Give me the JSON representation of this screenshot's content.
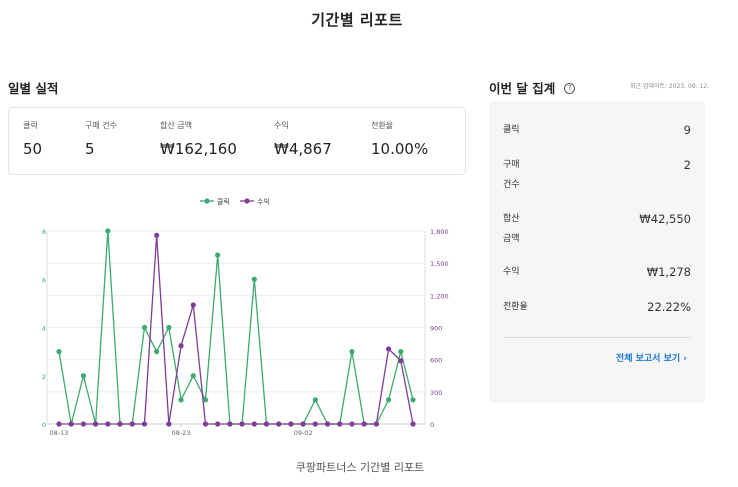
{
  "page_title": "기간별 리포트",
  "daily": {
    "title": "일별 실적",
    "stats": [
      {
        "label": "클릭",
        "value": "50"
      },
      {
        "label": "구매 건수",
        "value": "5"
      },
      {
        "label": "합산 금액",
        "value": "₩162,160"
      },
      {
        "label": "수익",
        "value": "₩4,867"
      },
      {
        "label": "전환율",
        "value": "10.00%"
      }
    ]
  },
  "colors": {
    "clicks": "#3daa6e",
    "revenue": "#7e3d96",
    "link": "#1877d6"
  },
  "chart_data": {
    "type": "line",
    "x_tick_labels": [
      "08-13",
      "08-23",
      "09-02"
    ],
    "series": [
      {
        "name": "클릭",
        "axis": "left",
        "values": [
          3,
          0,
          2,
          0,
          8,
          0,
          0,
          4,
          3,
          4,
          1,
          2,
          1,
          7,
          0,
          0,
          6,
          0,
          0,
          0,
          0,
          1,
          0,
          0,
          3,
          0,
          0,
          1,
          3,
          1
        ]
      },
      {
        "name": "수익",
        "axis": "right",
        "values": [
          0,
          0,
          0,
          0,
          0,
          0,
          0,
          0,
          1760,
          0,
          730,
          1110,
          0,
          0,
          0,
          0,
          0,
          0,
          0,
          0,
          0,
          0,
          0,
          0,
          0,
          0,
          0,
          700,
          590,
          0
        ]
      }
    ],
    "left_axis": {
      "ticks": [
        "0",
        "2",
        "4",
        "6",
        "8"
      ],
      "range": [
        0,
        8
      ]
    },
    "right_axis": {
      "ticks": [
        "0",
        "300",
        "600",
        "900",
        "1,200",
        "1,500",
        "1,800"
      ],
      "range": [
        0,
        1800
      ]
    },
    "grid": "horizontal",
    "legend_position": "top-center",
    "caption": "쿠팡파트너스 기간별 리포트"
  },
  "summary": {
    "title": "이번 달 집계",
    "help_icon": "question-circle-icon",
    "updated": "최근 업데이트: 2023. 09. 12.",
    "rows": [
      {
        "label_lines": [
          "클릭"
        ],
        "value": "9"
      },
      {
        "label_lines": [
          "구매",
          "건수"
        ],
        "value": "2"
      },
      {
        "label_lines": [
          "합산",
          "금액"
        ],
        "value": "₩42,550"
      },
      {
        "label_lines": [
          "수익"
        ],
        "value": "₩1,278"
      },
      {
        "label_lines": [
          "전환율"
        ],
        "value": "22.22%"
      }
    ],
    "full_report_label": "전체 보고서 보기 ›"
  }
}
